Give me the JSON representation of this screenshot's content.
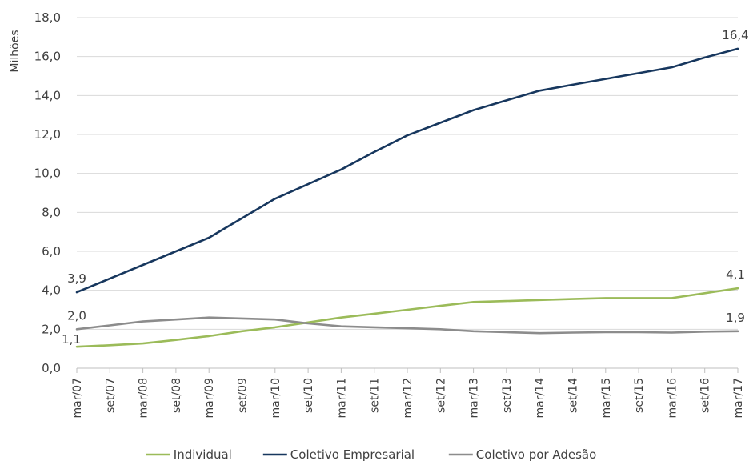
{
  "chart_data": {
    "type": "line",
    "ylabel": "Milhões",
    "xlabel": "",
    "ylim": [
      0,
      18
    ],
    "y_ticks": [
      "0,0",
      "2,0",
      "4,0",
      "6,0",
      "8,0",
      "10,0",
      "12,0",
      "14,0",
      "16,0",
      "18,0"
    ],
    "categories": [
      "mar/07",
      "set/07",
      "mar/08",
      "set/08",
      "mar/09",
      "set/09",
      "mar/10",
      "set/10",
      "mar/11",
      "set/11",
      "mar/12",
      "set/12",
      "mar/13",
      "set/13",
      "mar/14",
      "set/14",
      "mar/15",
      "set/15",
      "mar/16",
      "set/16",
      "mar/17"
    ],
    "grid": true,
    "legend_position": "bottom",
    "series": [
      {
        "name": "Individual",
        "color": "#9bbb59",
        "values": [
          1.1,
          1.18,
          1.27,
          1.45,
          1.65,
          1.9,
          2.1,
          2.35,
          2.6,
          2.8,
          3.0,
          3.2,
          3.4,
          3.45,
          3.5,
          3.55,
          3.6,
          3.6,
          3.6,
          3.85,
          4.1
        ],
        "labels": [
          {
            "index": 0,
            "text": "1,1"
          },
          {
            "index": 20,
            "text": "4,1"
          }
        ]
      },
      {
        "name": "Coletivo Empresarial",
        "color": "#17375e",
        "values": [
          3.9,
          4.6,
          5.3,
          6.0,
          6.7,
          7.7,
          8.7,
          9.45,
          10.2,
          11.1,
          11.95,
          12.6,
          13.25,
          13.75,
          14.25,
          14.55,
          14.85,
          15.15,
          15.45,
          15.95,
          16.4
        ],
        "labels": [
          {
            "index": 0,
            "text": "3,9"
          },
          {
            "index": 20,
            "text": "16,4"
          }
        ]
      },
      {
        "name": "Coletivo por Adesão",
        "color": "#8c8c8c",
        "values": [
          2.0,
          2.2,
          2.4,
          2.5,
          2.6,
          2.55,
          2.5,
          2.3,
          2.15,
          2.1,
          2.05,
          2.0,
          1.9,
          1.85,
          1.8,
          1.83,
          1.85,
          1.85,
          1.83,
          1.88,
          1.9
        ],
        "labels": [
          {
            "index": 0,
            "text": "2,0"
          },
          {
            "index": 20,
            "text": "1,9"
          }
        ]
      }
    ]
  }
}
